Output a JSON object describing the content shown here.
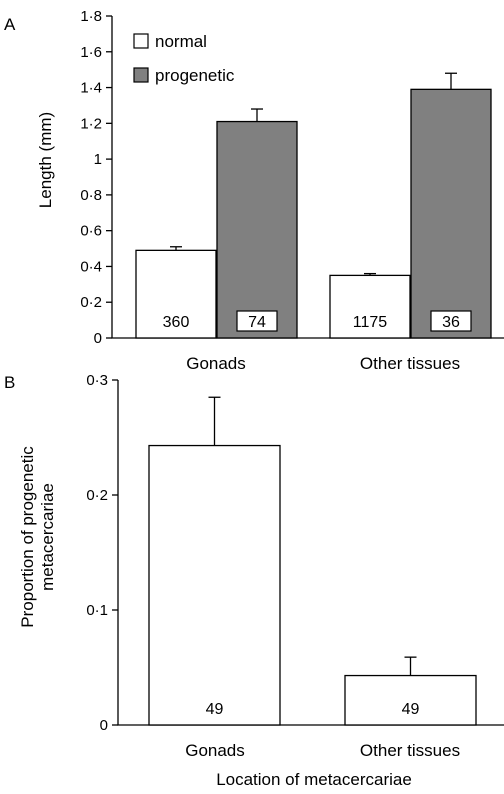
{
  "colors": {
    "normal": "#ffffff",
    "progenetic": "#808080",
    "axis": "#000000"
  },
  "chart_data": [
    {
      "type": "bar",
      "panel": "A",
      "title": "",
      "xlabel": "",
      "ylabel": "Length (mm)",
      "ylim": [
        0,
        1.8
      ],
      "yticks": [
        "0",
        "0·2",
        "0·4",
        "0·6",
        "0·8",
        "1",
        "1·2",
        "1·4",
        "1·6",
        "1·8"
      ],
      "categories": [
        "Gonads",
        "Other tissues"
      ],
      "legend": "top-left",
      "series": [
        {
          "name": "normal",
          "values": [
            0.49,
            0.35
          ],
          "errors": [
            0.02,
            0.01
          ],
          "n_labels": [
            "360",
            "1175"
          ]
        },
        {
          "name": "progenetic",
          "values": [
            1.21,
            1.39
          ],
          "errors": [
            0.07,
            0.09
          ],
          "n_labels": [
            "74",
            "36"
          ]
        }
      ]
    },
    {
      "type": "bar",
      "panel": "B",
      "title": "",
      "xlabel": "Location of metacercariae",
      "ylabel": "Proportion of progenetic metacercariae",
      "ylabel_lines": [
        "Proportion of progenetic",
        "metacercariae"
      ],
      "ylim": [
        0,
        0.3
      ],
      "yticks": [
        "0",
        "0·1",
        "0·2",
        "0·3"
      ],
      "categories": [
        "Gonads",
        "Other tissues"
      ],
      "values": [
        0.243,
        0.043
      ],
      "errors": [
        0.042,
        0.016
      ],
      "n_labels": [
        "49",
        "49"
      ]
    }
  ]
}
